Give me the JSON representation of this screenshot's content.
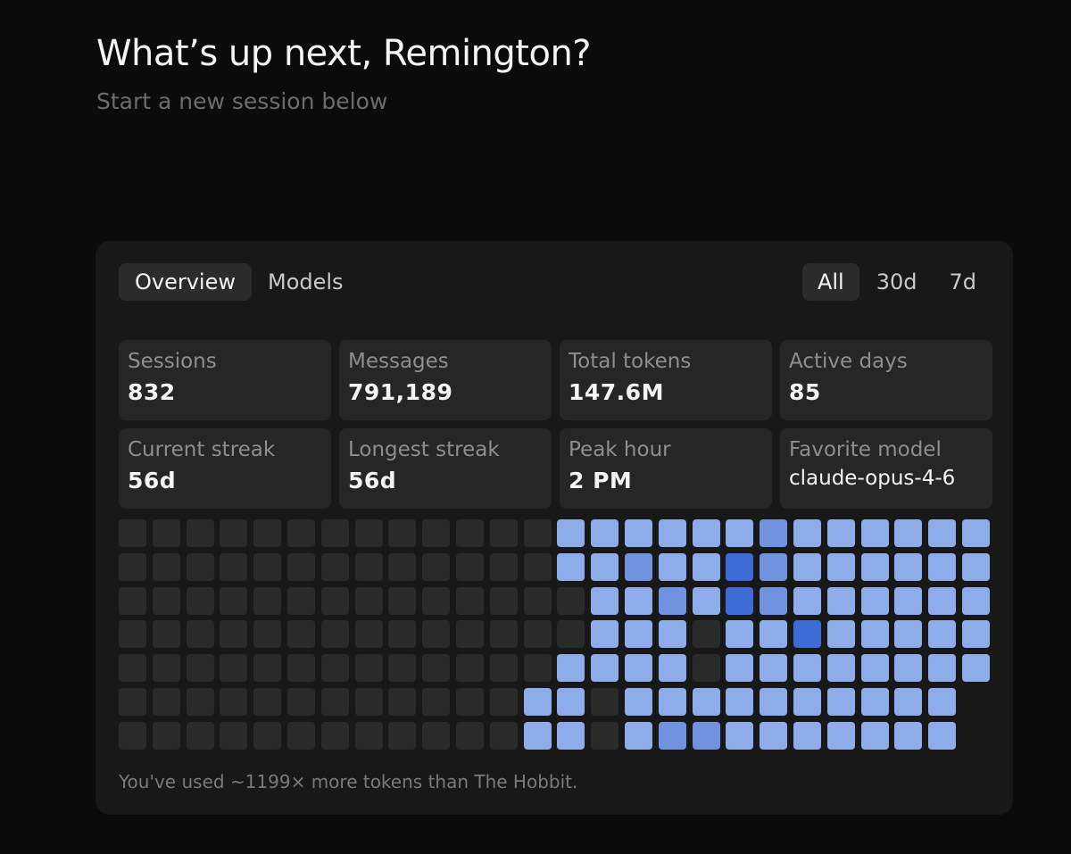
{
  "header": {
    "greeting": "What’s up next, Remington?",
    "subtitle": "Start a new session below"
  },
  "tabs": [
    {
      "label": "Overview",
      "active": true
    },
    {
      "label": "Models",
      "active": false
    }
  ],
  "ranges": [
    {
      "label": "All",
      "active": true
    },
    {
      "label": "30d",
      "active": false
    },
    {
      "label": "7d",
      "active": false
    }
  ],
  "stats": [
    {
      "label": "Sessions",
      "value": "832"
    },
    {
      "label": "Messages",
      "value": "791,189"
    },
    {
      "label": "Total tokens",
      "value": "147.6M"
    },
    {
      "label": "Active days",
      "value": "85"
    },
    {
      "label": "Current streak",
      "value": "56d"
    },
    {
      "label": "Longest streak",
      "value": "56d"
    },
    {
      "label": "Peak hour",
      "value": "2 PM"
    },
    {
      "label": "Favorite model",
      "value": "claude-opus-4-6"
    }
  ],
  "heatmap": {
    "colors": {
      "empty": "#2a2a2a",
      "level1": "#8eabea",
      "level2": "#7093e0",
      "level3": "#3f6bd6"
    },
    "levels": [
      [
        0,
        0,
        0,
        0,
        0,
        0,
        0,
        0,
        0,
        0,
        0,
        0,
        0,
        1,
        1,
        1,
        1,
        1,
        1,
        2,
        1,
        1,
        1,
        1,
        1,
        1
      ],
      [
        0,
        0,
        0,
        0,
        0,
        0,
        0,
        0,
        0,
        0,
        0,
        0,
        0,
        1,
        1,
        2,
        1,
        1,
        3,
        2,
        1,
        1,
        1,
        1,
        1,
        1
      ],
      [
        0,
        0,
        0,
        0,
        0,
        0,
        0,
        0,
        0,
        0,
        0,
        0,
        0,
        0,
        1,
        1,
        2,
        1,
        3,
        2,
        1,
        1,
        1,
        1,
        1,
        1
      ],
      [
        0,
        0,
        0,
        0,
        0,
        0,
        0,
        0,
        0,
        0,
        0,
        0,
        0,
        0,
        1,
        1,
        1,
        0,
        1,
        1,
        3,
        1,
        1,
        1,
        1,
        1
      ],
      [
        0,
        0,
        0,
        0,
        0,
        0,
        0,
        0,
        0,
        0,
        0,
        0,
        0,
        1,
        1,
        1,
        1,
        0,
        1,
        1,
        1,
        1,
        1,
        1,
        1,
        1
      ],
      [
        0,
        0,
        0,
        0,
        0,
        0,
        0,
        0,
        0,
        0,
        0,
        0,
        1,
        1,
        0,
        1,
        1,
        1,
        1,
        1,
        1,
        1,
        1,
        1,
        1,
        -1
      ],
      [
        0,
        0,
        0,
        0,
        0,
        0,
        0,
        0,
        0,
        0,
        0,
        0,
        1,
        1,
        0,
        1,
        2,
        2,
        1,
        1,
        1,
        1,
        1,
        1,
        1,
        -1
      ]
    ]
  },
  "footnote": "You've used ~1199× more tokens than The Hobbit."
}
